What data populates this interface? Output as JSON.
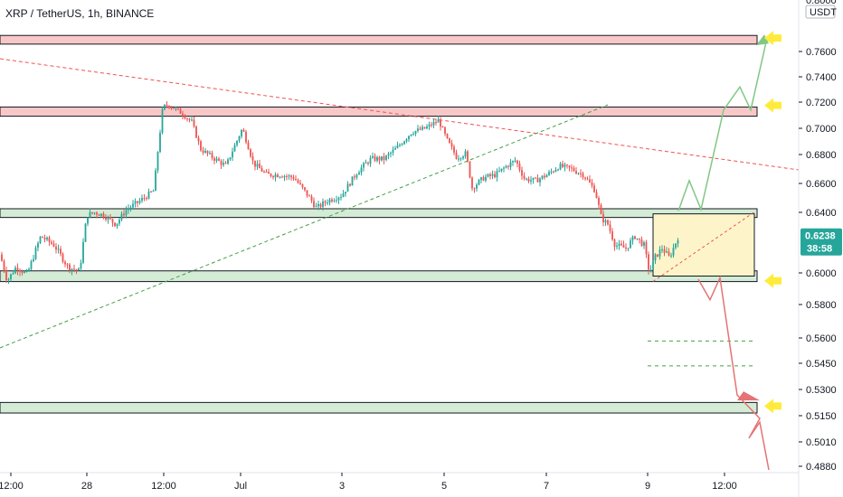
{
  "header": {
    "title": "XRP / TetherUS, 1h, BINANCE"
  },
  "price_axis": {
    "unit": "USDT",
    "top_partial_label": "0.8000"
  },
  "last_price": {
    "value": "0.6238",
    "countdown": "38:58",
    "color": "#26a69a"
  },
  "colors": {
    "up": "#26a69a",
    "down": "#ef5350",
    "resistance_zone": "#f8c8c8",
    "support_zone": "#d4ecd5",
    "box": "#fdf5c9",
    "arrow_up_path": "#81c784",
    "arrow_down_path": "#e57373",
    "marker": "#ffeb3b",
    "trend_red": "#ef5350",
    "trend_green": "#43a047"
  },
  "chart_data": {
    "type": "candlestick",
    "title": "XRP / TetherUS, 1h, BINANCE",
    "ylabel": "USDT",
    "ylim": [
      0.4848,
      0.8
    ],
    "x_tick_labels": [
      "12:00",
      "28",
      "12:00",
      "Jul",
      "3",
      "5",
      "7",
      "9",
      "12:00"
    ],
    "y_tick_labels": [
      "0.7600",
      "0.7400",
      "0.7200",
      "0.7000",
      "0.6800",
      "0.6600",
      "0.6400",
      "0.6000",
      "0.5800",
      "0.5600",
      "0.5450",
      "0.5300",
      "0.5150",
      "0.5010",
      "0.4880"
    ],
    "price_path": [
      [
        0,
        0.612
      ],
      [
        8,
        0.595
      ],
      [
        18,
        0.604
      ],
      [
        30,
        0.599
      ],
      [
        45,
        0.624
      ],
      [
        60,
        0.618
      ],
      [
        75,
        0.604
      ],
      [
        88,
        0.601
      ],
      [
        96,
        0.638
      ],
      [
        105,
        0.64
      ],
      [
        115,
        0.638
      ],
      [
        128,
        0.632
      ],
      [
        140,
        0.642
      ],
      [
        155,
        0.648
      ],
      [
        170,
        0.655
      ],
      [
        180,
        0.716
      ],
      [
        186,
        0.718
      ],
      [
        200,
        0.712
      ],
      [
        212,
        0.705
      ],
      [
        222,
        0.684
      ],
      [
        235,
        0.678
      ],
      [
        250,
        0.672
      ],
      [
        268,
        0.7
      ],
      [
        280,
        0.674
      ],
      [
        295,
        0.666
      ],
      [
        310,
        0.666
      ],
      [
        325,
        0.664
      ],
      [
        340,
        0.652
      ],
      [
        350,
        0.643
      ],
      [
        362,
        0.648
      ],
      [
        378,
        0.652
      ],
      [
        395,
        0.668
      ],
      [
        410,
        0.677
      ],
      [
        425,
        0.677
      ],
      [
        440,
        0.686
      ],
      [
        455,
        0.697
      ],
      [
        470,
        0.7
      ],
      [
        485,
        0.706
      ],
      [
        495,
        0.69
      ],
      [
        505,
        0.678
      ],
      [
        515,
        0.681
      ],
      [
        522,
        0.657
      ],
      [
        535,
        0.664
      ],
      [
        548,
        0.666
      ],
      [
        560,
        0.672
      ],
      [
        570,
        0.676
      ],
      [
        580,
        0.663
      ],
      [
        592,
        0.662
      ],
      [
        605,
        0.666
      ],
      [
        618,
        0.672
      ],
      [
        632,
        0.67
      ],
      [
        645,
        0.666
      ],
      [
        658,
        0.655
      ],
      [
        665,
        0.636
      ],
      [
        672,
        0.632
      ],
      [
        680,
        0.618
      ],
      [
        692,
        0.616
      ],
      [
        702,
        0.624
      ],
      [
        712,
        0.618
      ],
      [
        718,
        0.6
      ],
      [
        724,
        0.61
      ],
      [
        732,
        0.616
      ],
      [
        740,
        0.61
      ],
      [
        750,
        0.6238
      ]
    ],
    "horizontal_levels": [
      {
        "kind": "resistance",
        "low": 0.7692,
        "high": 0.7704
      },
      {
        "kind": "resistance",
        "low": 0.712,
        "high": 0.7135
      },
      {
        "kind": "support",
        "low": 0.639,
        "high": 0.64
      },
      {
        "kind": "support",
        "low": 0.5968,
        "high": 0.599
      },
      {
        "kind": "support",
        "low": 0.5186,
        "high": 0.5205
      }
    ],
    "dashed_target_levels": [
      0.5582,
      0.5435
    ],
    "projection_box": {
      "low": 0.598,
      "high": 0.639
    },
    "bullish_projection": [
      [
        750,
        0.641
      ],
      [
        762,
        0.662
      ],
      [
        775,
        0.642
      ],
      [
        800,
        0.714
      ],
      [
        818,
        0.732
      ],
      [
        830,
        0.714
      ],
      [
        848,
        0.7712
      ]
    ],
    "bearish_projection": [
      [
        772,
        0.596
      ],
      [
        785,
        0.583
      ],
      [
        796,
        0.597
      ],
      [
        815,
        0.5268
      ],
      [
        830,
        0.5188
      ],
      [
        840,
        0.5135
      ],
      [
        828,
        0.503
      ],
      [
        840,
        0.5115
      ],
      [
        850,
        0.486
      ]
    ],
    "markers": [
      0.7712,
      0.7175,
      0.595,
      0.5205
    ]
  }
}
